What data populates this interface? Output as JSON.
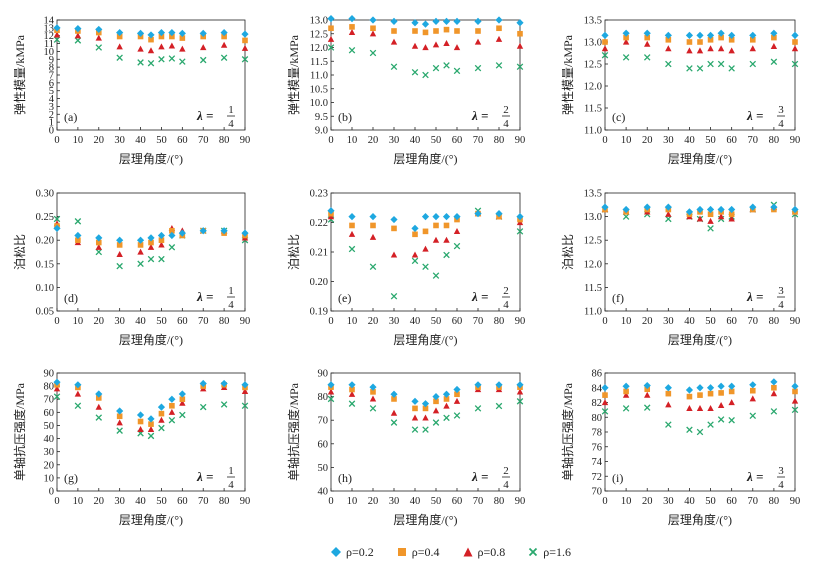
{
  "chart_data": [
    {
      "type": "scatter",
      "panel": "(a)",
      "ylabel": "弹性模量/kMPa",
      "xlabel": "层理角度/(°)",
      "ylim": [
        0,
        14
      ],
      "yticks": [
        0,
        1,
        2,
        3,
        4,
        5,
        6,
        7,
        8,
        9,
        10,
        11,
        12,
        13,
        14
      ],
      "xlim": [
        0,
        90
      ],
      "xticks": [
        0,
        10,
        20,
        30,
        40,
        50,
        60,
        70,
        80,
        90
      ],
      "lambda": {
        "num": "1",
        "den": "4"
      },
      "x": [
        0,
        10,
        20,
        30,
        40,
        45,
        50,
        55,
        60,
        70,
        80,
        90
      ],
      "series": [
        {
          "name": "ρ=0.2",
          "values": [
            13.0,
            12.9,
            12.8,
            12.4,
            12.3,
            12.1,
            12.4,
            12.4,
            12.3,
            12.3,
            12.4,
            12.2
          ]
        },
        {
          "name": "ρ=0.4",
          "values": [
            12.7,
            12.6,
            12.4,
            11.9,
            11.9,
            11.5,
            11.9,
            11.9,
            11.7,
            11.9,
            11.9,
            11.4
          ]
        },
        {
          "name": "ρ=0.8",
          "values": [
            12.1,
            12.0,
            11.7,
            10.6,
            10.3,
            10.1,
            10.6,
            10.7,
            10.3,
            10.5,
            10.8,
            10.4
          ]
        },
        {
          "name": "ρ=1.6",
          "values": [
            11.5,
            11.4,
            10.5,
            9.2,
            8.6,
            8.5,
            9.0,
            9.1,
            8.7,
            8.9,
            9.2,
            9.0
          ]
        }
      ]
    },
    {
      "type": "scatter",
      "panel": "(b)",
      "ylabel": "弹性模量/kMPa",
      "xlabel": "层理角度/(°)",
      "ylim": [
        9.0,
        13.0
      ],
      "yticks": [
        9.0,
        9.5,
        10.0,
        10.5,
        11.0,
        11.5,
        12.0,
        12.5,
        13.0
      ],
      "xlim": [
        0,
        90
      ],
      "xticks": [
        0,
        10,
        20,
        30,
        40,
        50,
        60,
        70,
        80,
        90
      ],
      "lambda": {
        "num": "2",
        "den": "4"
      },
      "x": [
        0,
        10,
        20,
        30,
        40,
        45,
        50,
        55,
        60,
        70,
        80,
        90
      ],
      "series": [
        {
          "name": "ρ=0.2",
          "values": [
            13.05,
            13.05,
            13.0,
            12.95,
            12.9,
            12.85,
            12.95,
            12.95,
            12.95,
            12.95,
            13.0,
            12.9
          ]
        },
        {
          "name": "ρ=0.4",
          "values": [
            12.7,
            12.75,
            12.7,
            12.6,
            12.6,
            12.55,
            12.6,
            12.65,
            12.6,
            12.6,
            12.7,
            12.5
          ]
        },
        {
          "name": "ρ=0.8",
          "values": [
            12.3,
            12.55,
            12.5,
            12.2,
            12.05,
            12.0,
            12.1,
            12.15,
            12.0,
            12.2,
            12.3,
            12.05
          ]
        },
        {
          "name": "ρ=1.6",
          "values": [
            12.0,
            11.9,
            11.8,
            11.3,
            11.1,
            11.0,
            11.25,
            11.35,
            11.15,
            11.25,
            11.35,
            11.3
          ]
        }
      ]
    },
    {
      "type": "scatter",
      "panel": "(c)",
      "ylabel": "弹性模量/kMPa",
      "xlabel": "层理角度/(°)",
      "ylim": [
        11.0,
        13.5
      ],
      "yticks": [
        11.0,
        11.5,
        12.0,
        12.5,
        13.0,
        13.5
      ],
      "xlim": [
        0,
        90
      ],
      "xticks": [
        0,
        10,
        20,
        30,
        40,
        50,
        60,
        70,
        80,
        90
      ],
      "lambda": {
        "num": "3",
        "den": "4"
      },
      "x": [
        0,
        10,
        20,
        30,
        40,
        45,
        50,
        55,
        60,
        70,
        80,
        90
      ],
      "series": [
        {
          "name": "ρ=0.2",
          "values": [
            13.15,
            13.2,
            13.2,
            13.15,
            13.15,
            13.15,
            13.15,
            13.2,
            13.15,
            13.15,
            13.2,
            13.15
          ]
        },
        {
          "name": "ρ=0.4",
          "values": [
            13.0,
            13.1,
            13.1,
            13.05,
            13.0,
            13.0,
            13.05,
            13.1,
            13.05,
            13.05,
            13.1,
            13.0
          ]
        },
        {
          "name": "ρ=0.8",
          "values": [
            12.85,
            13.0,
            12.95,
            12.85,
            12.8,
            12.8,
            12.85,
            12.85,
            12.8,
            12.85,
            12.9,
            12.85
          ]
        },
        {
          "name": "ρ=1.6",
          "values": [
            12.7,
            12.65,
            12.65,
            12.5,
            12.4,
            12.4,
            12.5,
            12.5,
            12.4,
            12.5,
            12.55,
            12.5
          ]
        }
      ]
    },
    {
      "type": "scatter",
      "panel": "(d)",
      "ylabel": "泊松比",
      "xlabel": "层理角度/(°)",
      "ylim": [
        0.05,
        0.3
      ],
      "yticks": [
        0.05,
        0.1,
        0.15,
        0.2,
        0.25,
        0.3
      ],
      "xlim": [
        0,
        90
      ],
      "xticks": [
        0,
        10,
        20,
        30,
        40,
        50,
        60,
        70,
        80,
        90
      ],
      "lambda": {
        "num": "1",
        "den": "4"
      },
      "x": [
        0,
        10,
        20,
        30,
        40,
        45,
        50,
        55,
        60,
        70,
        80,
        90
      ],
      "series": [
        {
          "name": "ρ=0.2",
          "values": [
            0.225,
            0.21,
            0.205,
            0.2,
            0.2,
            0.205,
            0.21,
            0.21,
            0.215,
            0.22,
            0.22,
            0.215
          ]
        },
        {
          "name": "ρ=0.4",
          "values": [
            0.23,
            0.2,
            0.195,
            0.19,
            0.19,
            0.195,
            0.2,
            0.22,
            0.21,
            0.22,
            0.215,
            0.21
          ]
        },
        {
          "name": "ρ=0.8",
          "values": [
            0.235,
            0.195,
            0.185,
            0.17,
            0.175,
            0.185,
            0.19,
            0.225,
            0.22,
            0.22,
            0.22,
            0.205
          ]
        },
        {
          "name": "ρ=1.6",
          "values": [
            0.245,
            0.24,
            0.175,
            0.145,
            0.15,
            0.16,
            0.16,
            0.185,
            0.21,
            0.22,
            0.22,
            0.2
          ]
        }
      ]
    },
    {
      "type": "scatter",
      "panel": "(e)",
      "ylabel": "泊松比",
      "xlabel": "层理角度/(°)",
      "ylim": [
        0.19,
        0.23
      ],
      "yticks": [
        0.19,
        0.2,
        0.21,
        0.22,
        0.23
      ],
      "xlim": [
        0,
        90
      ],
      "xticks": [
        0,
        10,
        20,
        30,
        40,
        50,
        60,
        70,
        80,
        90
      ],
      "lambda": {
        "num": "2",
        "den": "4"
      },
      "x": [
        0,
        10,
        20,
        30,
        40,
        45,
        50,
        55,
        60,
        70,
        80,
        90
      ],
      "series": [
        {
          "name": "ρ=0.2",
          "values": [
            0.224,
            0.222,
            0.222,
            0.221,
            0.218,
            0.222,
            0.222,
            0.222,
            0.222,
            0.223,
            0.223,
            0.222
          ]
        },
        {
          "name": "ρ=0.4",
          "values": [
            0.223,
            0.219,
            0.219,
            0.218,
            0.216,
            0.217,
            0.219,
            0.219,
            0.221,
            0.223,
            0.222,
            0.221
          ]
        },
        {
          "name": "ρ=0.8",
          "values": [
            0.222,
            0.216,
            0.215,
            0.209,
            0.209,
            0.211,
            0.214,
            0.214,
            0.217,
            0.223,
            0.222,
            0.22
          ]
        },
        {
          "name": "ρ=1.6",
          "values": [
            0.221,
            0.211,
            0.205,
            0.195,
            0.207,
            0.205,
            0.202,
            0.209,
            0.212,
            0.224,
            0.222,
            0.217
          ]
        }
      ]
    },
    {
      "type": "scatter",
      "panel": "(f)",
      "ylabel": "泊松比",
      "xlabel": "层理角度/(°)",
      "ylim": [
        11.0,
        13.5
      ],
      "yticks": [
        11.0,
        11.5,
        12.0,
        12.5,
        13.0,
        13.5
      ],
      "xlim": [
        0,
        90
      ],
      "xticks": [
        0,
        10,
        20,
        30,
        40,
        50,
        60,
        70,
        80,
        90
      ],
      "lambda": {
        "num": "3",
        "den": "4"
      },
      "x": [
        0,
        10,
        20,
        30,
        40,
        45,
        50,
        55,
        60,
        70,
        80,
        90
      ],
      "series": [
        {
          "name": "ρ=0.2",
          "values": [
            13.2,
            13.15,
            13.2,
            13.2,
            13.1,
            13.15,
            13.15,
            13.15,
            13.15,
            13.2,
            13.2,
            13.15
          ]
        },
        {
          "name": "ρ=0.4",
          "values": [
            13.15,
            13.1,
            13.15,
            13.15,
            13.05,
            13.1,
            13.05,
            13.1,
            13.05,
            13.15,
            13.15,
            13.1
          ]
        },
        {
          "name": "ρ=0.8",
          "values": [
            13.15,
            13.1,
            13.1,
            13.05,
            13.0,
            12.95,
            12.9,
            13.0,
            12.95,
            13.15,
            13.2,
            13.1
          ]
        },
        {
          "name": "ρ=1.6",
          "values": [
            13.15,
            13.0,
            13.05,
            12.95,
            13.0,
            12.95,
            12.75,
            12.95,
            13.0,
            13.15,
            13.25,
            13.05
          ]
        }
      ]
    },
    {
      "type": "scatter",
      "panel": "(g)",
      "ylabel": "单轴抗压强度/MPa",
      "xlabel": "层理角度/(°)",
      "ylim": [
        0,
        90
      ],
      "yticks": [
        0,
        10,
        20,
        30,
        40,
        50,
        60,
        70,
        80,
        90
      ],
      "xlim": [
        0,
        90
      ],
      "xticks": [
        0,
        10,
        20,
        30,
        40,
        50,
        60,
        70,
        80,
        90
      ],
      "lambda": {
        "num": "1",
        "den": "4"
      },
      "x": [
        0,
        10,
        20,
        30,
        40,
        45,
        50,
        55,
        60,
        70,
        80,
        90
      ],
      "series": [
        {
          "name": "ρ=0.2",
          "values": [
            83,
            81,
            74,
            61,
            58,
            55,
            64,
            70,
            74,
            82,
            82,
            81
          ]
        },
        {
          "name": "ρ=0.4",
          "values": [
            81,
            79,
            71,
            57,
            53,
            51,
            59,
            65,
            70,
            80,
            81,
            79
          ]
        },
        {
          "name": "ρ=0.8",
          "values": [
            78,
            74,
            64,
            52,
            47,
            47,
            54,
            60,
            67,
            78,
            79,
            76
          ]
        },
        {
          "name": "ρ=1.6",
          "values": [
            72,
            65,
            56,
            46,
            44,
            42,
            48,
            54,
            58,
            64,
            66,
            65
          ]
        }
      ]
    },
    {
      "type": "scatter",
      "panel": "(h)",
      "ylabel": "单轴抗压强度/MPa",
      "xlabel": "层理角度/(°)",
      "ylim": [
        40,
        90
      ],
      "yticks": [
        40,
        50,
        60,
        70,
        80,
        90
      ],
      "xlim": [
        0,
        90
      ],
      "xticks": [
        0,
        10,
        20,
        30,
        40,
        50,
        60,
        70,
        80,
        90
      ],
      "lambda": {
        "num": "2",
        "den": "4"
      },
      "x": [
        0,
        10,
        20,
        30,
        40,
        45,
        50,
        55,
        60,
        70,
        80,
        90
      ],
      "series": [
        {
          "name": "ρ=0.2",
          "values": [
            85,
            85,
            84,
            81,
            78,
            77,
            80,
            81,
            83,
            85,
            85,
            85
          ]
        },
        {
          "name": "ρ=0.4",
          "values": [
            84,
            83,
            82,
            79,
            75,
            75,
            78,
            79,
            81,
            84,
            84,
            84
          ]
        },
        {
          "name": "ρ=0.8",
          "values": [
            82,
            81,
            79,
            73,
            71,
            71,
            74,
            76,
            78,
            83,
            83,
            82
          ]
        },
        {
          "name": "ρ=1.6",
          "values": [
            79,
            77,
            75,
            69,
            66,
            66,
            69,
            71,
            72,
            75,
            76,
            78
          ]
        }
      ]
    },
    {
      "type": "scatter",
      "panel": "(i)",
      "ylabel": "单轴抗压强度/MPa",
      "xlabel": "层理角度/(°)",
      "ylim": [
        70,
        86
      ],
      "yticks": [
        70,
        72,
        74,
        76,
        78,
        80,
        82,
        84,
        86
      ],
      "xlim": [
        0,
        90
      ],
      "xticks": [
        0,
        10,
        20,
        30,
        40,
        50,
        60,
        70,
        80,
        90
      ],
      "lambda": {
        "num": "3",
        "den": "4"
      },
      "x": [
        0,
        10,
        20,
        30,
        40,
        45,
        50,
        55,
        60,
        70,
        80,
        90
      ],
      "series": [
        {
          "name": "ρ=0.2",
          "values": [
            84,
            84.2,
            84.3,
            84,
            83.7,
            84,
            84,
            84.2,
            84.2,
            84.4,
            84.8,
            84.2
          ]
        },
        {
          "name": "ρ=0.4",
          "values": [
            83,
            83.5,
            83.8,
            83.2,
            82.8,
            83,
            83.2,
            83.3,
            83.5,
            83.6,
            84,
            83.5
          ]
        },
        {
          "name": "ρ=0.8",
          "values": [
            82,
            83,
            83,
            81.7,
            81.2,
            81.2,
            81.2,
            81.6,
            82,
            82.5,
            83.2,
            82.2
          ]
        },
        {
          "name": "ρ=1.6",
          "values": [
            80.8,
            81.2,
            81.3,
            79,
            78.3,
            78,
            79,
            79.7,
            79.6,
            80.2,
            80.8,
            81
          ]
        }
      ]
    }
  ],
  "legend": {
    "items": [
      {
        "label": "ρ=0.2",
        "marker": "diamond",
        "color": "#1ea8e0"
      },
      {
        "label": "ρ=0.4",
        "marker": "square",
        "color": "#f0962a"
      },
      {
        "label": "ρ=0.8",
        "marker": "triangle",
        "color": "#d42026"
      },
      {
        "label": "ρ=1.6",
        "marker": "cross",
        "color": "#2aa86e"
      }
    ]
  },
  "lambda_symbol": "λ",
  "colors": {
    "axis": "#222222",
    "c02": "#1ea8e0",
    "c04": "#f0962a",
    "c08": "#d42026",
    "c16": "#2aa86e"
  }
}
